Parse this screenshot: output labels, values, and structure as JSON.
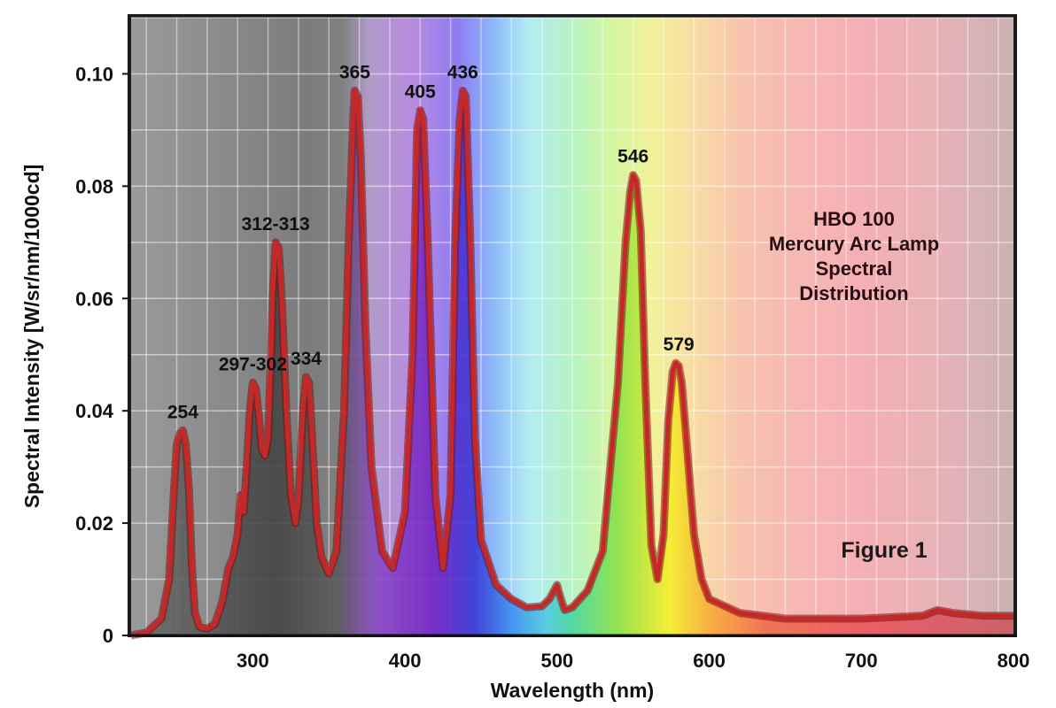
{
  "chart_data": {
    "type": "line",
    "title": "HBO 100 Mercury Arc Lamp Spectral Distribution",
    "title_lines": [
      "HBO 100",
      "Mercury Arc Lamp",
      "Spectral",
      "Distribution"
    ],
    "figure_label": "Figure 1",
    "xlabel": "Wavelength (nm)",
    "ylabel": "Spectral Intensity [W/sr/nm/1000cd]",
    "xlim": [
      220,
      800
    ],
    "ylim": [
      0,
      0.11
    ],
    "xticks": [
      {
        "value": 300,
        "label": "300"
      },
      {
        "value": 400,
        "label": "400"
      },
      {
        "value": 500,
        "label": "500"
      },
      {
        "value": 600,
        "label": "600"
      },
      {
        "value": 700,
        "label": "700"
      },
      {
        "value": 800,
        "label": "800"
      }
    ],
    "yticks": [
      {
        "value": 0,
        "label": "0"
      },
      {
        "value": 0.02,
        "label": "0.02"
      },
      {
        "value": 0.04,
        "label": "0.04"
      },
      {
        "value": 0.06,
        "label": "0.06"
      },
      {
        "value": 0.08,
        "label": "0.08"
      },
      {
        "value": 0.1,
        "label": "0.10"
      }
    ],
    "grid": true,
    "background": "visible spectrum gradient (UV gray to deep red)",
    "line_color": "#b71c1c",
    "series": [
      {
        "name": "HBO 100 spectral intensity",
        "x": [
          220,
          230,
          240,
          245,
          248,
          250,
          252,
          254,
          256,
          258,
          260,
          262,
          265,
          270,
          275,
          280,
          284,
          287,
          290,
          292,
          294,
          296,
          298,
          300,
          302,
          304,
          306,
          308,
          310,
          312,
          313,
          315,
          317,
          319,
          322,
          325,
          328,
          330,
          333,
          335,
          337,
          339,
          342,
          345,
          350,
          355,
          360,
          363,
          366,
          367,
          369,
          371,
          374,
          378,
          385,
          392,
          400,
          405,
          408,
          410,
          412,
          415,
          420,
          425,
          430,
          433,
          436,
          438,
          440,
          443,
          446,
          450,
          460,
          470,
          480,
          490,
          495,
          498,
          500,
          502,
          505,
          510,
          520,
          530,
          540,
          545,
          548,
          550,
          552,
          555,
          558,
          562,
          566,
          570,
          573,
          576,
          578,
          580,
          582,
          585,
          590,
          595,
          600,
          620,
          650,
          700,
          740,
          750,
          760,
          780,
          800
        ],
        "y": [
          0,
          0.0005,
          0.003,
          0.01,
          0.025,
          0.034,
          0.036,
          0.0365,
          0.034,
          0.026,
          0.012,
          0.004,
          0.0015,
          0.0012,
          0.002,
          0.006,
          0.012,
          0.014,
          0.018,
          0.025,
          0.022,
          0.03,
          0.04,
          0.045,
          0.044,
          0.039,
          0.033,
          0.032,
          0.035,
          0.05,
          0.06,
          0.07,
          0.069,
          0.06,
          0.04,
          0.025,
          0.02,
          0.024,
          0.04,
          0.046,
          0.045,
          0.035,
          0.02,
          0.014,
          0.011,
          0.015,
          0.04,
          0.07,
          0.092,
          0.097,
          0.096,
          0.085,
          0.055,
          0.03,
          0.015,
          0.012,
          0.022,
          0.05,
          0.09,
          0.0935,
          0.092,
          0.07,
          0.025,
          0.012,
          0.025,
          0.07,
          0.092,
          0.097,
          0.096,
          0.07,
          0.035,
          0.017,
          0.009,
          0.0065,
          0.005,
          0.0052,
          0.0065,
          0.008,
          0.009,
          0.007,
          0.0045,
          0.005,
          0.008,
          0.015,
          0.045,
          0.07,
          0.079,
          0.082,
          0.081,
          0.072,
          0.045,
          0.016,
          0.01,
          0.018,
          0.038,
          0.047,
          0.0485,
          0.048,
          0.045,
          0.035,
          0.018,
          0.01,
          0.0065,
          0.004,
          0.003,
          0.003,
          0.0035,
          0.0045,
          0.004,
          0.0035,
          0.0035
        ]
      }
    ],
    "peak_labels": [
      {
        "label": "254",
        "x": 254,
        "y": 0.0365
      },
      {
        "label": "297-302",
        "x": 300,
        "y": 0.045
      },
      {
        "label": "312-313",
        "x": 315,
        "y": 0.07
      },
      {
        "label": "334",
        "x": 335,
        "y": 0.046
      },
      {
        "label": "365",
        "x": 367,
        "y": 0.097
      },
      {
        "label": "405",
        "x": 410,
        "y": 0.0935
      },
      {
        "label": "436",
        "x": 438,
        "y": 0.097
      },
      {
        "label": "546",
        "x": 550,
        "y": 0.082
      },
      {
        "label": "579",
        "x": 580,
        "y": 0.0485
      }
    ]
  }
}
